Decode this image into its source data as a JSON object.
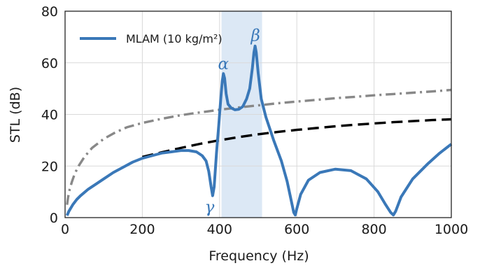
{
  "chart_data": {
    "type": "line",
    "xlabel": "Frequency (Hz)",
    "ylabel": "STL (dB)",
    "xlim": [
      0,
      1000
    ],
    "ylim": [
      0,
      80
    ],
    "xticks": [
      "0",
      "200",
      "400",
      "600",
      "800",
      "1000"
    ],
    "yticks": [
      "0",
      "20",
      "40",
      "60",
      "80"
    ],
    "grid": true,
    "legend_position": "top-left",
    "shaded_band": {
      "x_start": 405,
      "x_end": 510,
      "color": "#dce8f5"
    },
    "series": [
      {
        "name": "MLAM (10 kg/m²)",
        "color": "#3a78b8",
        "style": "solid",
        "points": [
          [
            5,
            0.8
          ],
          [
            10,
            2.5
          ],
          [
            20,
            5
          ],
          [
            30,
            7
          ],
          [
            40,
            8.5
          ],
          [
            60,
            11
          ],
          [
            80,
            13
          ],
          [
            100,
            15
          ],
          [
            125,
            17.5
          ],
          [
            150,
            19.5
          ],
          [
            175,
            21.5
          ],
          [
            200,
            23
          ],
          [
            225,
            24
          ],
          [
            250,
            25
          ],
          [
            275,
            25.5
          ],
          [
            300,
            26
          ],
          [
            320,
            26
          ],
          [
            340,
            25.5
          ],
          [
            355,
            24
          ],
          [
            365,
            22
          ],
          [
            372,
            18
          ],
          [
            378,
            12
          ],
          [
            382,
            8.5
          ],
          [
            386,
            12
          ],
          [
            392,
            25
          ],
          [
            398,
            36
          ],
          [
            403,
            46
          ],
          [
            407,
            53
          ],
          [
            410,
            55.8
          ],
          [
            413,
            54
          ],
          [
            417,
            48
          ],
          [
            422,
            44
          ],
          [
            430,
            42.5
          ],
          [
            440,
            41.8
          ],
          [
            450,
            42
          ],
          [
            460,
            43
          ],
          [
            470,
            46
          ],
          [
            478,
            50
          ],
          [
            485,
            58
          ],
          [
            489,
            64
          ],
          [
            492,
            66.5
          ],
          [
            495,
            64
          ],
          [
            500,
            56
          ],
          [
            508,
            46
          ],
          [
            520,
            39
          ],
          [
            540,
            30
          ],
          [
            560,
            22
          ],
          [
            575,
            14
          ],
          [
            585,
            7
          ],
          [
            592,
            2
          ],
          [
            596,
            1
          ],
          [
            600,
            3.5
          ],
          [
            610,
            9
          ],
          [
            630,
            14.5
          ],
          [
            660,
            17.5
          ],
          [
            700,
            18.8
          ],
          [
            740,
            18.2
          ],
          [
            780,
            15
          ],
          [
            810,
            10
          ],
          [
            830,
            5
          ],
          [
            843,
            2
          ],
          [
            850,
            1
          ],
          [
            856,
            2.5
          ],
          [
            870,
            8
          ],
          [
            900,
            15
          ],
          [
            940,
            21
          ],
          [
            970,
            25
          ],
          [
            1000,
            28.5
          ]
        ]
      },
      {
        "name": "",
        "color": "#000000",
        "style": "dashed",
        "points": [
          [
            200,
            23.5
          ],
          [
            250,
            25.3
          ],
          [
            300,
            27
          ],
          [
            350,
            28.6
          ],
          [
            400,
            30
          ],
          [
            450,
            31.2
          ],
          [
            500,
            32.3
          ],
          [
            550,
            33.2
          ],
          [
            600,
            34
          ],
          [
            650,
            34.7
          ],
          [
            700,
            35.4
          ],
          [
            750,
            36
          ],
          [
            800,
            36.5
          ],
          [
            850,
            37
          ],
          [
            900,
            37.4
          ],
          [
            950,
            37.8
          ],
          [
            1000,
            38.1
          ]
        ]
      },
      {
        "name": "",
        "color": "#888888",
        "style": "dashdot",
        "points": [
          [
            5,
            5
          ],
          [
            8,
            8
          ],
          [
            12,
            11
          ],
          [
            18,
            14
          ],
          [
            25,
            17
          ],
          [
            35,
            20
          ],
          [
            50,
            23.5
          ],
          [
            70,
            27
          ],
          [
            100,
            30.5
          ],
          [
            130,
            33
          ],
          [
            160,
            35
          ],
          [
            200,
            36.7
          ],
          [
            250,
            38.3
          ],
          [
            300,
            39.7
          ],
          [
            350,
            40.8
          ],
          [
            400,
            41.8
          ],
          [
            450,
            42.7
          ],
          [
            500,
            43.5
          ],
          [
            550,
            44.3
          ],
          [
            600,
            45
          ],
          [
            650,
            45.6
          ],
          [
            700,
            46.3
          ],
          [
            750,
            46.8
          ],
          [
            800,
            47.4
          ],
          [
            850,
            47.9
          ],
          [
            900,
            48.4
          ],
          [
            950,
            48.9
          ],
          [
            1000,
            49.5
          ]
        ]
      }
    ],
    "annotations": [
      {
        "text": "α",
        "x": 410,
        "y": 57.5
      },
      {
        "text": "β",
        "x": 493,
        "y": 68.5
      },
      {
        "text": "γ",
        "x": 374,
        "y": 2
      }
    ]
  }
}
